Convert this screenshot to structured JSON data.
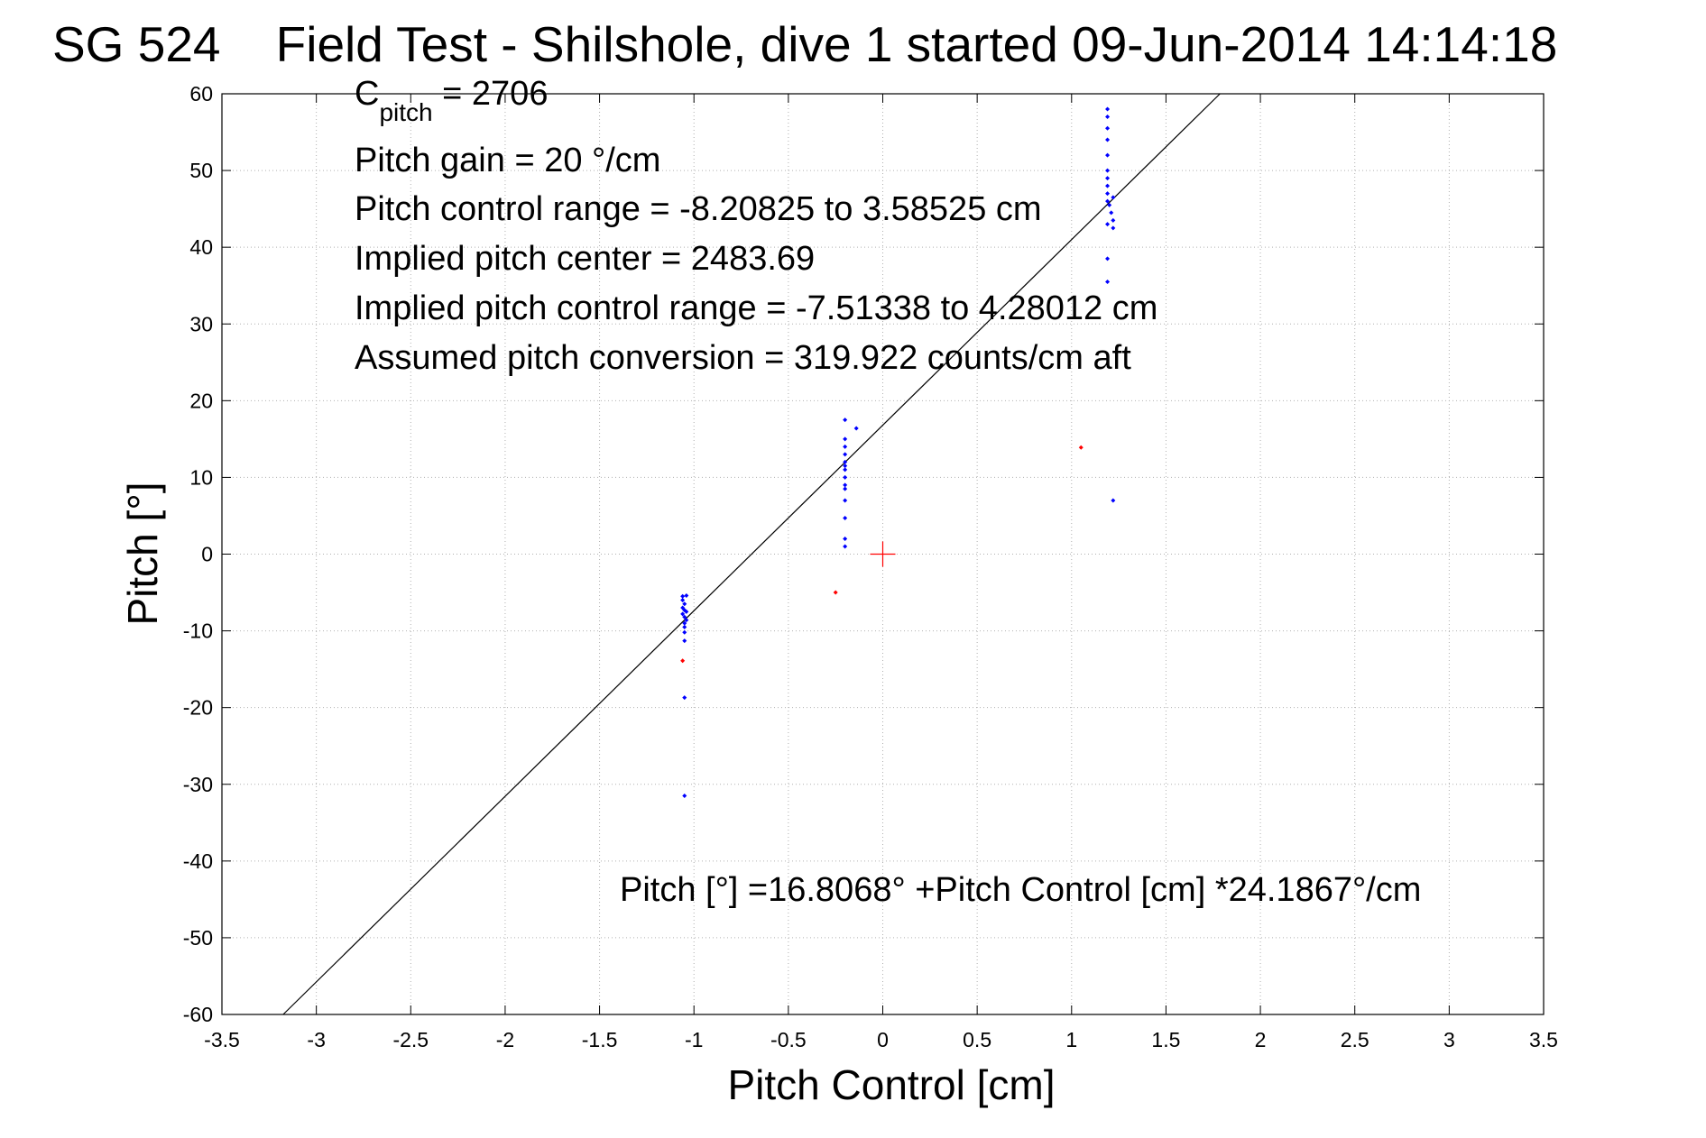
{
  "chart_data": {
    "type": "scatter",
    "title": "SG 524    Field Test - Shilshole, dive 1 started 09-Jun-2014 14:14:18",
    "xlabel": "Pitch Control [cm]",
    "ylabel": "Pitch [°]",
    "xlim": [
      -3.5,
      3.5
    ],
    "ylim": [
      -60,
      60
    ],
    "grid": true,
    "x_ticks": [
      -3.5,
      -3,
      -2.5,
      -2,
      -1.5,
      -1,
      -0.5,
      0,
      0.5,
      1,
      1.5,
      2,
      2.5,
      3,
      3.5
    ],
    "x_tick_labels": [
      "-3.5",
      "-3",
      "-2.5",
      "-2",
      "-1.5",
      "-1",
      "-0.5",
      "0",
      "0.5",
      "1",
      "1.5",
      "2",
      "2.5",
      "3",
      "3.5"
    ],
    "y_ticks": [
      60,
      50,
      40,
      30,
      20,
      10,
      0,
      -10,
      -20,
      -30,
      -40,
      -50,
      -60
    ],
    "y_tick_labels": [
      "60",
      "50",
      "40",
      "30",
      "20",
      "10",
      "0",
      "-10",
      "-20",
      "-30",
      "-40",
      "-50",
      "-60"
    ],
    "annotations": {
      "c_pitch_main": "C",
      "c_pitch_sub": "pitch",
      "c_pitch_value": " = 2706",
      "pitch_gain": "Pitch gain = 20 °/cm",
      "control_range": "Pitch control range = -8.20825 to 3.58525 cm",
      "implied_center": "Implied pitch center = 2483.69",
      "implied_range": "Implied pitch control range = -7.51338 to 4.28012 cm",
      "conversion": "Assumed pitch conversion = 319.922 counts/cm aft",
      "fit_equation": "Pitch [°] =16.8068° +Pitch Control [cm] *24.1867°/cm"
    },
    "fit_line": {
      "intercept": 16.8068,
      "slope": 24.1867,
      "color": "#000000"
    },
    "center_marker": {
      "x": 0,
      "y": 0,
      "color": "#ff0000"
    },
    "series": [
      {
        "color": "#0000ff",
        "points": [
          [
            -1.06,
            -5.5
          ],
          [
            -1.06,
            -6.0
          ],
          [
            -1.05,
            -6.5
          ],
          [
            -1.06,
            -7.0
          ],
          [
            -1.05,
            -7.3
          ],
          [
            -1.06,
            -7.8
          ],
          [
            -1.05,
            -8.2
          ],
          [
            -1.04,
            -8.6
          ],
          [
            -1.05,
            -9.0
          ],
          [
            -1.05,
            -9.5
          ],
          [
            -1.05,
            -10.2
          ],
          [
            -1.05,
            -11.3
          ],
          [
            -1.04,
            -5.4
          ],
          [
            -1.04,
            -7.5
          ],
          [
            -1.05,
            -18.7
          ],
          [
            -1.05,
            -31.5
          ],
          [
            -0.2,
            17.5
          ],
          [
            -0.2,
            15.0
          ],
          [
            -0.2,
            14.0
          ],
          [
            -0.2,
            13.0
          ],
          [
            -0.2,
            12.0
          ],
          [
            -0.2,
            11.5
          ],
          [
            -0.2,
            11.0
          ],
          [
            -0.2,
            10.0
          ],
          [
            -0.2,
            9.0
          ],
          [
            -0.2,
            8.5
          ],
          [
            -0.2,
            7.0
          ],
          [
            -0.2,
            4.7
          ],
          [
            -0.2,
            2.0
          ],
          [
            -0.2,
            1.0
          ],
          [
            -0.14,
            16.4
          ],
          [
            1.19,
            58.0
          ],
          [
            1.19,
            57.0
          ],
          [
            1.19,
            55.5
          ],
          [
            1.19,
            54.0
          ],
          [
            1.19,
            52.0
          ],
          [
            1.19,
            50.0
          ],
          [
            1.19,
            49.0
          ],
          [
            1.19,
            48.0
          ],
          [
            1.19,
            47.0
          ],
          [
            1.19,
            46.0
          ],
          [
            1.2,
            45.5
          ],
          [
            1.21,
            44.5
          ],
          [
            1.22,
            43.5
          ],
          [
            1.19,
            43.0
          ],
          [
            1.22,
            46.5
          ],
          [
            1.19,
            38.5
          ],
          [
            1.19,
            35.5
          ],
          [
            1.22,
            42.5
          ],
          [
            1.22,
            7.0
          ]
        ]
      },
      {
        "color": "#ff0000",
        "points": [
          [
            -1.06,
            -13.9
          ],
          [
            -0.25,
            -5.0
          ],
          [
            1.05,
            13.9
          ]
        ]
      }
    ]
  }
}
